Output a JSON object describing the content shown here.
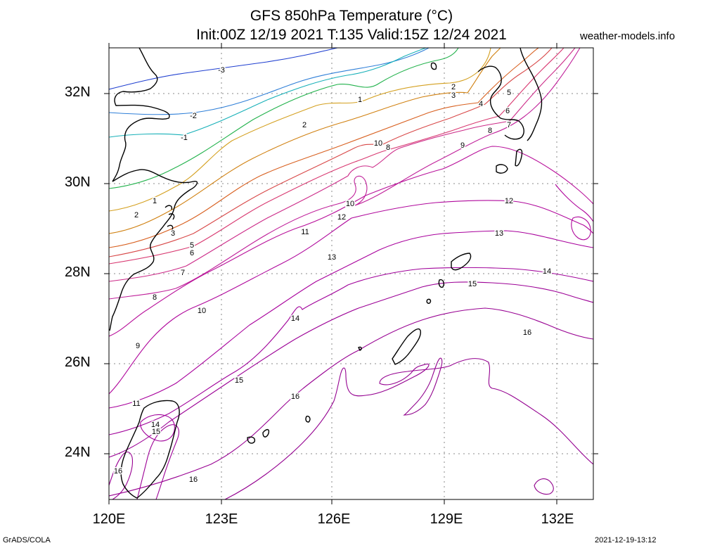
{
  "header": {
    "title_line1": "GFS 850hPa Temperature (°C)",
    "title_line2": "Init:00Z 12/19 2021 T:135 Valid:15Z 12/24 2021",
    "site": "weather-models.info"
  },
  "axes": {
    "lat_labels": [
      "32N",
      "30N",
      "28N",
      "26N",
      "24N"
    ],
    "lon_labels": [
      "120E",
      "123E",
      "126E",
      "129E",
      "132E"
    ]
  },
  "footer": {
    "left": "GrADS/COLA",
    "right": "2021-12-19-13:12"
  },
  "contour_labels": [
    "-3",
    "-2",
    "-1",
    "1",
    "2",
    "3",
    "4",
    "5",
    "6",
    "7",
    "8",
    "9",
    "10",
    "11",
    "12",
    "13",
    "14",
    "15",
    "16"
  ],
  "colors": {
    "-3": "#1f3fd0",
    "-2": "#2f7fd8",
    "-1": "#17b0b8",
    "1": "#22b24c",
    "2": "#d4a020",
    "3": "#d08010",
    "4": "#d86020",
    "5": "#d84848",
    "6": "#d83870",
    "7": "#cc2a88",
    "8": "#c0209a",
    "9": "#b8109a",
    "10": "#b0089c",
    "11": "#a8009c",
    "12": "#a0009a",
    "13": "#9c0096",
    "14": "#980092",
    "15": "#940090",
    "16": "#90008c"
  }
}
